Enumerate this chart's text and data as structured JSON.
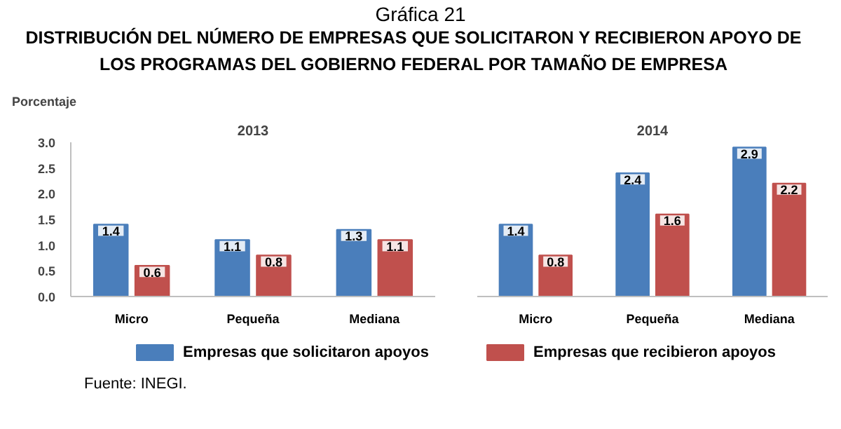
{
  "chart_data": [
    {
      "type": "bar",
      "title": "2013",
      "ylabel": "Porcentaje",
      "categories": [
        "Micro",
        "Pequeña",
        "Mediana"
      ],
      "series": [
        {
          "name": "Empresas que solicitaron apoyos",
          "color": "#4a7ebb",
          "values": [
            1.4,
            1.1,
            1.3
          ]
        },
        {
          "name": "Empresas que recibieron apoyos",
          "color": "#c0504d",
          "values": [
            0.6,
            0.8,
            1.1
          ]
        }
      ],
      "ylim": [
        0,
        3
      ],
      "yticks": [
        {
          "value": 0,
          "label": "0.0"
        },
        {
          "value": 0.5,
          "label": "0.5"
        },
        {
          "value": 1,
          "label": "1.0"
        },
        {
          "value": 1.5,
          "label": "1.5"
        },
        {
          "value": 2,
          "label": "2.0"
        },
        {
          "value": 2.5,
          "label": "2.5"
        },
        {
          "value": 3,
          "label": "3.0"
        }
      ],
      "data_labels": true,
      "legend": "bottom",
      "grid": false,
      "annotations": [
        "Gráfica 21",
        "DISTRIBUCIÓN DEL NÚMERO DE EMPRESAS QUE SOLICITARON Y RECIBIERON APOYO DE LOS PROGRAMAS DEL GOBIERNO FEDERAL POR TAMAÑO DE EMPRESA",
        "Fuente: INEGI."
      ]
    },
    {
      "type": "bar",
      "title": "2014",
      "categories": [
        "Micro",
        "Pequeña",
        "Mediana"
      ],
      "series": [
        {
          "color": "#4a7ebb",
          "values": [
            1.4,
            2.4,
            2.9
          ]
        },
        {
          "color": "#c0504d",
          "values": [
            0.8,
            1.6,
            2.2
          ]
        }
      ],
      "ylim": [
        0,
        3
      ],
      "data_labels": true,
      "grid": false,
      "tick_labels": "x"
    }
  ]
}
